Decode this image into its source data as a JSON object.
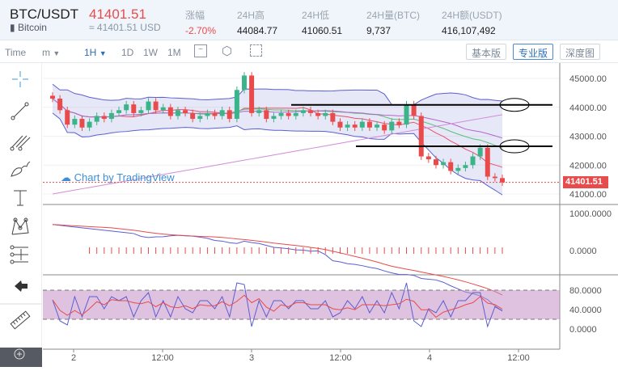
{
  "header": {
    "pair": "BTC/USDT",
    "coin": "Bitcoin",
    "price": "41401.51",
    "usd_price": "≈ 41401.51 USD",
    "stats": [
      {
        "label": "涨幅",
        "value": "-2.70%",
        "neg": true
      },
      {
        "label": "24H高",
        "value": "44084.77"
      },
      {
        "label": "24H低",
        "value": "41060.51"
      },
      {
        "label": "24H量(BTC)",
        "value": "9,737"
      },
      {
        "label": "24H额(USDT)",
        "value": "416,107,492"
      }
    ]
  },
  "toolbar": {
    "time": "Time",
    "minute": "m",
    "interval": "1H",
    "d": "1D",
    "w": "1W",
    "mo": "1M",
    "basic": "基本版",
    "pro": "专业版",
    "depth": "深度图"
  },
  "chart": {
    "watermark": "Chart by TradingView",
    "last_price": "41401.51",
    "price_ticks": [
      "45000.00",
      "44000.00",
      "43000.00",
      "42000.00",
      "41000.00"
    ],
    "macd_ticks": [
      "1000.0000",
      "0.0000"
    ],
    "rsi_ticks": [
      "80.0000",
      "40.0000",
      "0.0000"
    ],
    "time_ticks": [
      "2",
      "12:00",
      "3",
      "12:00",
      "4",
      "12:00"
    ],
    "hlines": [
      44084.77,
      42650
    ],
    "closes": [
      44300,
      43900,
      43400,
      43600,
      43300,
      43500,
      43700,
      43600,
      43800,
      43900,
      44100,
      43800,
      43900,
      44200,
      43900,
      44000,
      43700,
      43900,
      43800,
      43600,
      43700,
      43800,
      43700,
      43900,
      43600,
      44600,
      45100,
      43800,
      43900,
      43600,
      43700,
      43800,
      43700,
      43800,
      43900,
      43800,
      43700,
      43800,
      43500,
      43300,
      43400,
      43300,
      43500,
      43300,
      43400,
      43200,
      43500,
      43400,
      44100,
      43700,
      42300,
      42200,
      42000,
      42100,
      41800,
      41900,
      42000,
      42300,
      42600,
      41600,
      41550,
      41400
    ]
  }
}
